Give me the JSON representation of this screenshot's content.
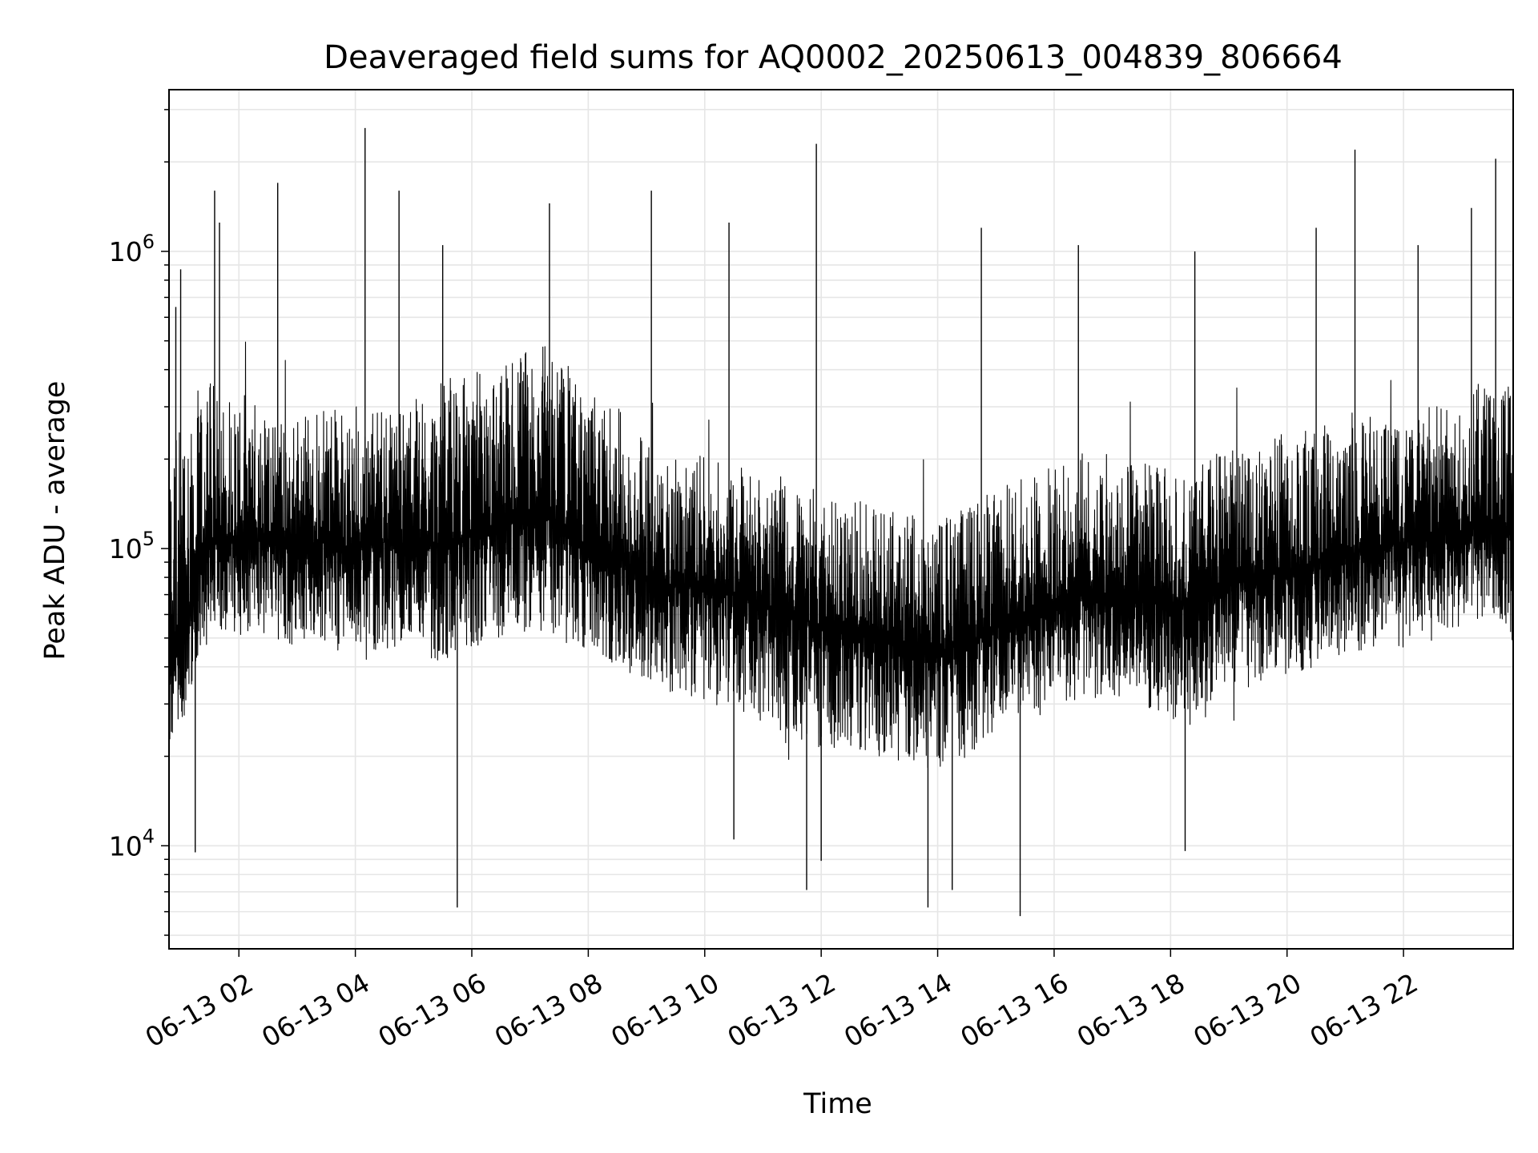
{
  "chart_data": {
    "type": "line",
    "title": "Deaveraged field sums for AQ0002_20250613_004839_806664",
    "xlabel": "Time",
    "ylabel": "Peak ADU - average",
    "y_scale": "log",
    "ylim": [
      4500,
      3500000
    ],
    "xlim": [
      "2025-06-13 00:48",
      "2025-06-13 23:53"
    ],
    "grid": true,
    "line_color": "#000000",
    "grid_color": "#e6e6e6",
    "x_ticks": [
      {
        "value": "2025-06-13 02:00",
        "label": "06-13 02"
      },
      {
        "value": "2025-06-13 04:00",
        "label": "06-13 04"
      },
      {
        "value": "2025-06-13 06:00",
        "label": "06-13 06"
      },
      {
        "value": "2025-06-13 08:00",
        "label": "06-13 08"
      },
      {
        "value": "2025-06-13 10:00",
        "label": "06-13 10"
      },
      {
        "value": "2025-06-13 12:00",
        "label": "06-13 12"
      },
      {
        "value": "2025-06-13 14:00",
        "label": "06-13 14"
      },
      {
        "value": "2025-06-13 16:00",
        "label": "06-13 16"
      },
      {
        "value": "2025-06-13 18:00",
        "label": "06-13 18"
      },
      {
        "value": "2025-06-13 20:00",
        "label": "06-13 20"
      },
      {
        "value": "2025-06-13 22:00",
        "label": "06-13 22"
      }
    ],
    "y_ticks": [
      {
        "value": 10000,
        "base": "10",
        "exp": "4"
      },
      {
        "value": 100000,
        "base": "10",
        "exp": "5"
      },
      {
        "value": 1000000,
        "base": "10",
        "exp": "6"
      }
    ],
    "series": [
      {
        "x": [
          "2025-06-13 00:48",
          "2025-06-13 01:00",
          "2025-06-13 01:20",
          "2025-06-13 01:40",
          "2025-06-13 02:00",
          "2025-06-13 02:30",
          "2025-06-13 03:00",
          "2025-06-13 03:30",
          "2025-06-13 04:00",
          "2025-06-13 04:30",
          "2025-06-13 05:00",
          "2025-06-13 05:30",
          "2025-06-13 06:00",
          "2025-06-13 06:30",
          "2025-06-13 07:00",
          "2025-06-13 07:30",
          "2025-06-13 08:00",
          "2025-06-13 08:30",
          "2025-06-13 09:00",
          "2025-06-13 09:30",
          "2025-06-13 10:00",
          "2025-06-13 10:30",
          "2025-06-13 11:00",
          "2025-06-13 11:30",
          "2025-06-13 12:00",
          "2025-06-13 12:30",
          "2025-06-13 13:00",
          "2025-06-13 13:30",
          "2025-06-13 14:00",
          "2025-06-13 14:30",
          "2025-06-13 15:00",
          "2025-06-13 15:30",
          "2025-06-13 16:00",
          "2025-06-13 16:30",
          "2025-06-13 17:00",
          "2025-06-13 17:30",
          "2025-06-13 18:00",
          "2025-06-13 18:30",
          "2025-06-13 19:00",
          "2025-06-13 19:30",
          "2025-06-13 20:00",
          "2025-06-13 20:30",
          "2025-06-13 21:00",
          "2025-06-13 21:30",
          "2025-06-13 22:00",
          "2025-06-13 22:30",
          "2025-06-13 23:00",
          "2025-06-13 23:30",
          "2025-06-13 23:53"
        ],
        "y": [
          40000,
          45000,
          90000,
          110000,
          110000,
          105000,
          100000,
          105000,
          100000,
          105000,
          100000,
          105000,
          110000,
          120000,
          130000,
          125000,
          100000,
          95000,
          80000,
          75000,
          75000,
          70000,
          65000,
          60000,
          55000,
          52000,
          50000,
          48000,
          45000,
          48000,
          55000,
          60000,
          65000,
          70000,
          70000,
          68000,
          65000,
          70000,
          75000,
          80000,
          85000,
          90000,
          95000,
          100000,
          105000,
          110000,
          115000,
          120000,
          110000
        ],
        "band_low": [
          18000,
          22000,
          40000,
          45000,
          45000,
          42000,
          40000,
          40000,
          38000,
          40000,
          40000,
          35000,
          40000,
          42000,
          45000,
          42000,
          38000,
          35000,
          30000,
          28000,
          25000,
          24000,
          22000,
          20000,
          18000,
          18000,
          17000,
          16000,
          15000,
          17000,
          20000,
          22000,
          25000,
          27000,
          26000,
          25000,
          22000,
          25000,
          28000,
          30000,
          32000,
          35000,
          38000,
          40000,
          42000,
          45000,
          48000,
          50000,
          45000
        ],
        "band_high": [
          400000,
          450000,
          500000,
          500000,
          450000,
          400000,
          380000,
          400000,
          380000,
          400000,
          420000,
          500000,
          550000,
          600000,
          700000,
          650000,
          450000,
          400000,
          300000,
          280000,
          260000,
          250000,
          240000,
          220000,
          200000,
          190000,
          180000,
          170000,
          170000,
          180000,
          210000,
          230000,
          260000,
          280000,
          270000,
          260000,
          240000,
          260000,
          280000,
          300000,
          320000,
          340000,
          350000,
          370000,
          380000,
          400000,
          450000,
          500000,
          480000
        ],
        "spikes": [
          {
            "x": "2025-06-13 00:55",
            "y": 650000
          },
          {
            "x": "2025-06-13 01:00",
            "y": 870000
          },
          {
            "x": "2025-06-13 01:35",
            "y": 1600000
          },
          {
            "x": "2025-06-13 01:40",
            "y": 1250000
          },
          {
            "x": "2025-06-13 02:40",
            "y": 1700000
          },
          {
            "x": "2025-06-13 04:10",
            "y": 2600000
          },
          {
            "x": "2025-06-13 04:45",
            "y": 1600000
          },
          {
            "x": "2025-06-13 05:30",
            "y": 1050000
          },
          {
            "x": "2025-06-13 07:20",
            "y": 1450000
          },
          {
            "x": "2025-06-13 09:05",
            "y": 1600000
          },
          {
            "x": "2025-06-13 10:25",
            "y": 1250000
          },
          {
            "x": "2025-06-13 11:55",
            "y": 2300000
          },
          {
            "x": "2025-06-13 14:45",
            "y": 1200000
          },
          {
            "x": "2025-06-13 16:25",
            "y": 1050000
          },
          {
            "x": "2025-06-13 18:25",
            "y": 1000000
          },
          {
            "x": "2025-06-13 20:30",
            "y": 1200000
          },
          {
            "x": "2025-06-13 21:10",
            "y": 2200000
          },
          {
            "x": "2025-06-13 22:15",
            "y": 1050000
          },
          {
            "x": "2025-06-13 23:10",
            "y": 1400000
          },
          {
            "x": "2025-06-13 23:35",
            "y": 2050000
          }
        ],
        "dips": [
          {
            "x": "2025-06-13 01:15",
            "y": 9500
          },
          {
            "x": "2025-06-13 05:45",
            "y": 6200
          },
          {
            "x": "2025-06-13 10:30",
            "y": 10500
          },
          {
            "x": "2025-06-13 11:45",
            "y": 7100
          },
          {
            "x": "2025-06-13 12:00",
            "y": 8900
          },
          {
            "x": "2025-06-13 13:50",
            "y": 6200
          },
          {
            "x": "2025-06-13 14:15",
            "y": 7100
          },
          {
            "x": "2025-06-13 15:25",
            "y": 5800
          },
          {
            "x": "2025-06-13 18:15",
            "y": 9600
          }
        ]
      }
    ]
  }
}
